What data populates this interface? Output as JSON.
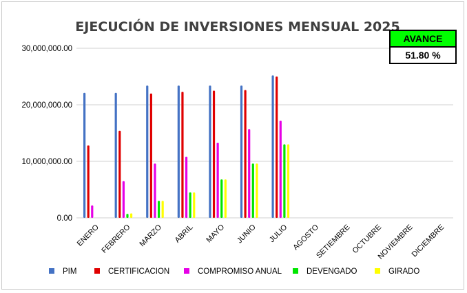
{
  "chart_data": {
    "type": "bar",
    "title": "EJECUCIÓN DE INVERSIONES MENSUAL 2025",
    "categories": [
      "ENERO",
      "FEBRERO",
      "MARZO",
      "ABRIL",
      "MAYO",
      "JUNIO",
      "JULIO",
      "AGOSTO",
      "SETIEMBRE",
      "OCTUBRE",
      "NOVIEMBRE",
      "DICIEMBRE"
    ],
    "ylim": [
      0,
      30000000
    ],
    "yticks": [
      0,
      10000000,
      20000000,
      30000000
    ],
    "ytick_labels": [
      "0.00",
      "10,000,000.00",
      "20,000,000.00",
      "30,000,000.00"
    ],
    "grid": true,
    "legend_position": "bottom",
    "series": [
      {
        "name": "PIM",
        "color": "#4472C4",
        "values": [
          22100000,
          22100000,
          23400000,
          23400000,
          23400000,
          23400000,
          25200000,
          null,
          null,
          null,
          null,
          null
        ]
      },
      {
        "name": "CERTIFICACION",
        "color": "#E00000",
        "values": [
          12800000,
          15400000,
          22000000,
          22300000,
          22500000,
          22600000,
          25000000,
          null,
          null,
          null,
          null,
          null
        ]
      },
      {
        "name": "COMPROMISO ANUAL",
        "color": "#E600E6",
        "values": [
          2200000,
          6500000,
          9600000,
          10800000,
          13300000,
          15700000,
          17200000,
          null,
          null,
          null,
          null,
          null
        ]
      },
      {
        "name": "DEVENGADO",
        "color": "#00E600",
        "values": [
          0,
          700000,
          3000000,
          4500000,
          6800000,
          9600000,
          13000000,
          null,
          null,
          null,
          null,
          null
        ]
      },
      {
        "name": "GIRADO",
        "color": "#FFFF00",
        "values": [
          0,
          800000,
          3000000,
          4500000,
          6800000,
          9600000,
          13000000,
          null,
          null,
          null,
          null,
          null
        ]
      }
    ]
  },
  "avance": {
    "label": "AVANCE",
    "value": "51.80 %",
    "label_bg": "#00FF00"
  }
}
